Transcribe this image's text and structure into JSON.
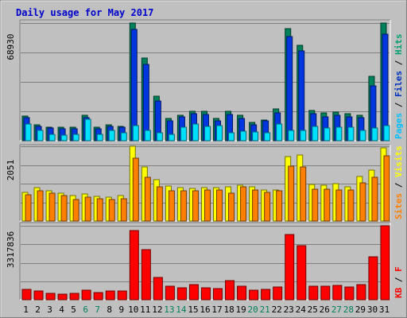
{
  "chart_data": {
    "type": "bar",
    "title": "Daily usage for May 2017",
    "x": [
      "1",
      "2",
      "3",
      "4",
      "5",
      "6",
      "7",
      "8",
      "9",
      "10",
      "11",
      "12",
      "13",
      "14",
      "15",
      "16",
      "17",
      "18",
      "19",
      "20",
      "21",
      "22",
      "23",
      "24",
      "25",
      "26",
      "27",
      "28",
      "29",
      "30",
      "31"
    ],
    "weekend_days": [
      "6",
      "7",
      "13",
      "14",
      "20",
      "21",
      "27",
      "28"
    ],
    "panels": [
      {
        "id": "top",
        "max_label": "68930",
        "ymax": 68930,
        "legend": [
          "Pages",
          "Files",
          "Hits"
        ],
        "legend_colors": [
          "#00c0ff",
          "#0030c0",
          "#00a070"
        ],
        "series": [
          {
            "name": "Hits",
            "color": "#00805b",
            "values": [
              14320,
              9130,
              7720,
              7770,
              7870,
              15000,
              7770,
              9130,
              8600,
              68930,
              48580,
              26060,
              12980,
              14720,
              17000,
              17000,
              12980,
              17000,
              14720,
              10500,
              12140,
              18600,
              65500,
              56000,
              17570,
              16350,
              16600,
              16000,
              15000,
              37650,
              69000
            ]
          },
          {
            "name": "Files",
            "color": "#0036e0",
            "values": [
              13310,
              8600,
              7490,
              7110,
              6910,
              13710,
              6910,
              8600,
              8080,
              65300,
              44790,
              23490,
              11790,
              13800,
              15900,
              15420,
              11870,
              15550,
              12980,
              9390,
              11650,
              16140,
              61100,
              52500,
              15800,
              14000,
              14720,
              13800,
              13600,
              32000,
              62500
            ]
          },
          {
            "name": "Pages",
            "color": "#00e0ff",
            "values": [
              9600,
              6050,
              3850,
              3110,
              3710,
              12500,
              3850,
              6140,
              4850,
              8800,
              5950,
              4760,
              3850,
              8080,
              9800,
              8500,
              8650,
              4850,
              5450,
              5140,
              4850,
              9800,
              5840,
              6050,
              8450,
              7520,
              7820,
              7720,
              5950,
              7600,
              8950
            ]
          }
        ]
      },
      {
        "id": "mid",
        "max_label": "2051",
        "ymax": 2051,
        "legend": [
          "Sites",
          "Visits"
        ],
        "legend_colors": [
          "#ff8000",
          "#ffff00"
        ],
        "series": [
          {
            "name": "Visits",
            "color": "#ffff00",
            "values": [
              780,
              910,
              830,
              770,
              700,
              750,
              670,
              650,
              690,
              2051,
              1490,
              1130,
              960,
              910,
              890,
              920,
              910,
              930,
              980,
              930,
              850,
              850,
              1770,
              1810,
              1010,
              990,
              1020,
              930,
              1220,
              1390,
              2000
            ]
          },
          {
            "name": "Sites",
            "color": "#ff8000",
            "values": [
              720,
              840,
              770,
              690,
              600,
              650,
              610,
              580,
              610,
              1720,
              1200,
              930,
              830,
              820,
              820,
              850,
              850,
              770,
              940,
              850,
              780,
              840,
              1510,
              1480,
              880,
              880,
              850,
              850,
              1040,
              1200,
              1800
            ]
          }
        ]
      },
      {
        "id": "bot",
        "max_label": "3317836",
        "ymax": 3317836,
        "legend": [
          "KB",
          "F"
        ],
        "legend_colors": [
          "#ff0000",
          "#ff0000"
        ],
        "series": [
          {
            "name": "KB",
            "color": "#ff0000",
            "values": [
              460000,
              380000,
              270000,
              250000,
              300000,
              420000,
              320000,
              400000,
              400000,
              3100000,
              2250000,
              1000000,
              620000,
              520000,
              680000,
              540000,
              500000,
              850000,
              620000,
              420000,
              460000,
              560000,
              2920000,
              2430000,
              620000,
              600000,
              640000,
              560000,
              680000,
              1930000,
              3317836
            ]
          }
        ]
      }
    ]
  }
}
